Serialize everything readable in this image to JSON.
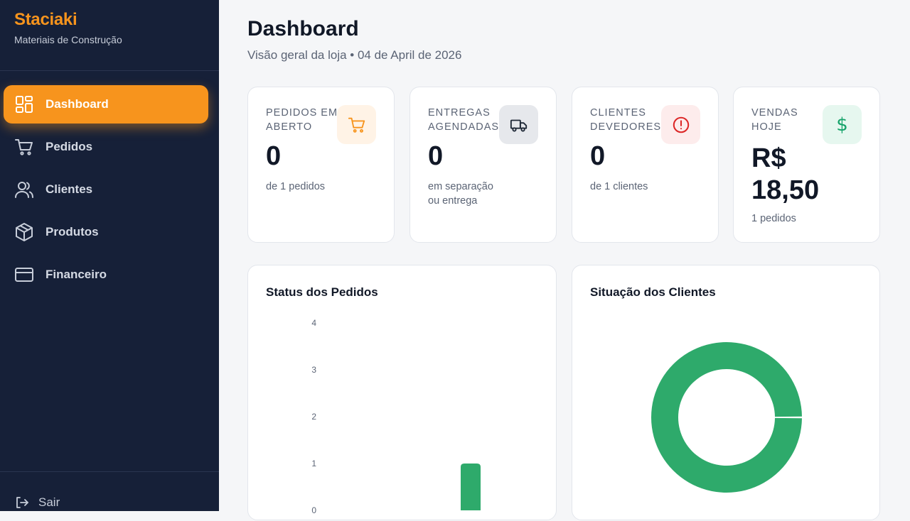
{
  "brand": {
    "name": "Staciaki",
    "subtitle": "Materiais de Construção"
  },
  "nav": {
    "items": [
      {
        "label": "Dashboard",
        "icon": "dashboard-grid-icon",
        "active": true
      },
      {
        "label": "Pedidos",
        "icon": "cart-icon",
        "active": false
      },
      {
        "label": "Clientes",
        "icon": "users-icon",
        "active": false
      },
      {
        "label": "Produtos",
        "icon": "box-icon",
        "active": false
      },
      {
        "label": "Financeiro",
        "icon": "credit-card-icon",
        "active": false
      }
    ],
    "logout_label": "Sair"
  },
  "header": {
    "title": "Dashboard",
    "subtitle": "Visão geral da loja • 04 de April de 2026"
  },
  "stats": [
    {
      "label": "PEDIDOS EM ABERTO",
      "value": "0",
      "desc": "de 1 pedidos",
      "icon": "cart-icon",
      "icon_color": "#f7941d",
      "icon_bg": "#fff3e6"
    },
    {
      "label": "ENTREGAS AGENDADAS",
      "value": "0",
      "desc": "em separação ou entrega",
      "icon": "truck-icon",
      "icon_color": "#1f2937",
      "icon_bg": "#e6e8ec"
    },
    {
      "label": "CLIENTES DEVEDORES",
      "value": "0",
      "desc": "de 1 clientes",
      "icon": "alert-circle-icon",
      "icon_color": "#dc2626",
      "icon_bg": "#fdecec"
    },
    {
      "label": "VENDAS HOJE",
      "value": "R$ 18,50",
      "desc": "1 pedidos",
      "icon": "dollar-icon",
      "icon_color": "#16a36a",
      "icon_bg": "#e6f7ef"
    }
  ],
  "charts": {
    "status_title": "Status dos Pedidos",
    "clientes_title": "Situação dos Clientes"
  },
  "colors": {
    "accent": "#f7941d",
    "sidebar": "#162038",
    "success": "#2eaa6b"
  },
  "chart_data": [
    {
      "type": "bar",
      "title": "Status dos Pedidos",
      "y_ticks": [
        0,
        1,
        2,
        3,
        4
      ],
      "ylim": [
        0,
        4
      ],
      "values": [
        1
      ],
      "grid": false
    },
    {
      "type": "pie",
      "title": "Situação dos Clientes",
      "values": [
        1
      ],
      "donut": true,
      "colors": [
        "#2eaa6b"
      ]
    }
  ]
}
